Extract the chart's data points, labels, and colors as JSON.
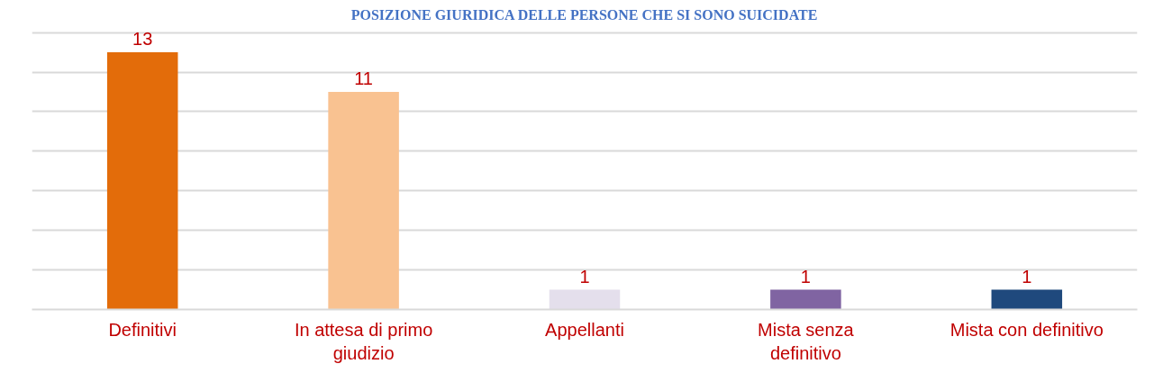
{
  "chart_data": {
    "type": "bar",
    "title": "POSIZIONE GIURIDICA DELLE PERSONE CHE SI SONO SUICIDATE",
    "categories": [
      "Definitivi",
      "In attesa di primo giudizio",
      "Appellanti",
      "Mista senza definitivo",
      "Mista con definitivo"
    ],
    "values": [
      13,
      11,
      1,
      1,
      1
    ],
    "colors": [
      "#e36c0a",
      "#f9c291",
      "#e4dfec",
      "#8064a2",
      "#1f497d"
    ],
    "tick_labels": "x",
    "grid": "y",
    "data_labels": true
  }
}
